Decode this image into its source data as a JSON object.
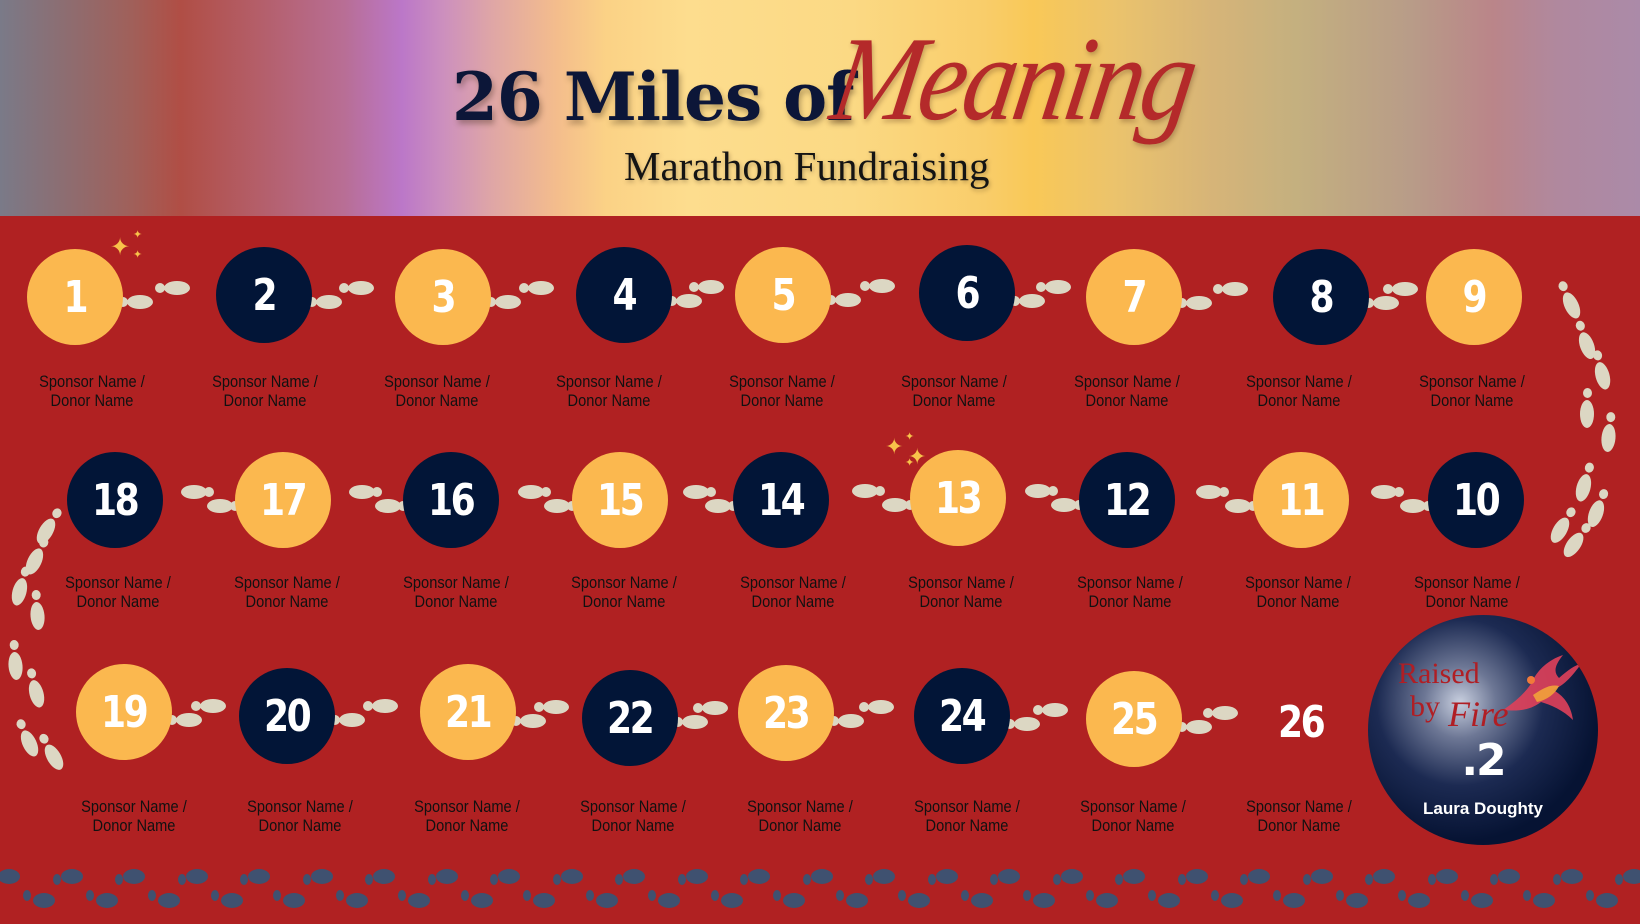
{
  "header": {
    "title_main": "26 Miles of",
    "title_script": "Meaning",
    "subtitle": "Marathon Fundraising"
  },
  "colors": {
    "background_red": "#b02122",
    "gold": "#fbb84f",
    "navy": "#021537",
    "footprint_light": "#dcd7c3",
    "footprint_dark": "#3f5170",
    "title_navy": "#0c1638",
    "script_red": "#b42a2a"
  },
  "miles": [
    {
      "num": "1",
      "style": "gold",
      "label_line1": "Sponsor Name /",
      "label_line2": "Donor Name"
    },
    {
      "num": "2",
      "style": "navy",
      "label_line1": "Sponsor Name /",
      "label_line2": "Donor Name"
    },
    {
      "num": "3",
      "style": "gold",
      "label_line1": "Sponsor Name /",
      "label_line2": "Donor Name"
    },
    {
      "num": "4",
      "style": "navy",
      "label_line1": "Sponsor Name /",
      "label_line2": "Donor Name"
    },
    {
      "num": "5",
      "style": "gold",
      "label_line1": "Sponsor Name /",
      "label_line2": "Donor Name"
    },
    {
      "num": "6",
      "style": "navy",
      "label_line1": "Sponsor Name /",
      "label_line2": "Donor Name"
    },
    {
      "num": "7",
      "style": "gold",
      "label_line1": "Sponsor Name /",
      "label_line2": "Donor Name"
    },
    {
      "num": "8",
      "style": "navy",
      "label_line1": "Sponsor Name /",
      "label_line2": "Donor Name"
    },
    {
      "num": "9",
      "style": "gold",
      "label_line1": "Sponsor Name /",
      "label_line2": "Donor Name"
    },
    {
      "num": "10",
      "style": "navy",
      "label_line1": "Sponsor Name /",
      "label_line2": "Donor Name"
    },
    {
      "num": "11",
      "style": "gold",
      "label_line1": "Sponsor Name /",
      "label_line2": "Donor Name"
    },
    {
      "num": "12",
      "style": "navy",
      "label_line1": "Sponsor Name /",
      "label_line2": "Donor Name"
    },
    {
      "num": "13",
      "style": "gold",
      "label_line1": "Sponsor Name /",
      "label_line2": "Donor Name"
    },
    {
      "num": "14",
      "style": "navy",
      "label_line1": "Sponsor Name /",
      "label_line2": "Donor Name"
    },
    {
      "num": "15",
      "style": "gold",
      "label_line1": "Sponsor Name /",
      "label_line2": "Donor Name"
    },
    {
      "num": "16",
      "style": "navy",
      "label_line1": "Sponsor Name /",
      "label_line2": "Donor Name"
    },
    {
      "num": "17",
      "style": "gold",
      "label_line1": "Sponsor Name /",
      "label_line2": "Donor Name"
    },
    {
      "num": "18",
      "style": "navy",
      "label_line1": "Sponsor Name /",
      "label_line2": "Donor Name"
    },
    {
      "num": "19",
      "style": "gold",
      "label_line1": "Sponsor Name /",
      "label_line2": "Donor Name"
    },
    {
      "num": "20",
      "style": "navy",
      "label_line1": "Sponsor Name /",
      "label_line2": "Donor Name"
    },
    {
      "num": "21",
      "style": "gold",
      "label_line1": "Sponsor Name /",
      "label_line2": "Donor Name"
    },
    {
      "num": "22",
      "style": "navy",
      "label_line1": "Sponsor Name /",
      "label_line2": "Donor Name"
    },
    {
      "num": "23",
      "style": "gold",
      "label_line1": "Sponsor Name /",
      "label_line2": "Donor Name"
    },
    {
      "num": "24",
      "style": "navy",
      "label_line1": "Sponsor Name /",
      "label_line2": "Donor Name"
    },
    {
      "num": "25",
      "style": "gold",
      "label_line1": "Sponsor Name /",
      "label_line2": "Donor Name"
    },
    {
      "num": "26",
      "style": "plain",
      "label_line1": "Sponsor Name /",
      "label_line2": "Donor Name"
    }
  ],
  "finish_badge": {
    "logo_line1": "Raised",
    "logo_line2": "by",
    "logo_line3": "Fire",
    "mile_fraction": ".2",
    "runner_name": "Laura Doughty"
  },
  "icons": {
    "sparkle": "✦",
    "footprints": "footprints-icon",
    "phoenix": "phoenix-icon"
  }
}
